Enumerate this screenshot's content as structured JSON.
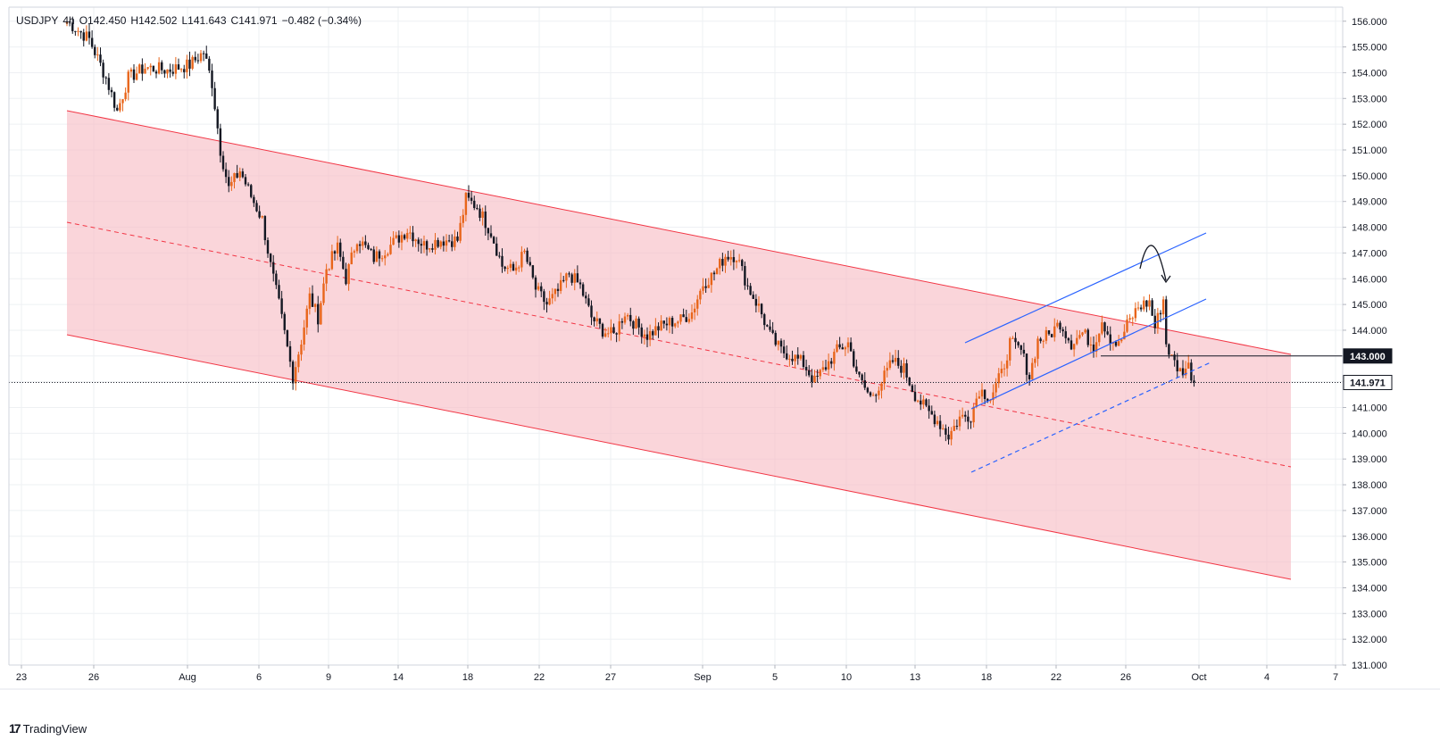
{
  "legend": {
    "symbol": "USDJPY",
    "timeframe": "4h",
    "open": "O142.450",
    "high": "H142.502",
    "low": "L141.643",
    "close": "C141.971",
    "change": "−0.482 (−0.34%)"
  },
  "branding": {
    "name": "TradingView",
    "logo_glyph": "17"
  },
  "colors": {
    "up": "#e8651a",
    "down": "#131722",
    "channel_fill": "#f7bcc4",
    "channel_line": "#f23645",
    "wedge_line": "#2962ff",
    "grid": "#eef0f3"
  },
  "chart_data": {
    "type": "candlestick",
    "symbol": "USDJPY",
    "interval": "4h",
    "y_axis": {
      "min": 131,
      "max": 156,
      "ticks": [
        "131.000",
        "132.000",
        "133.000",
        "134.000",
        "135.000",
        "136.000",
        "137.000",
        "138.000",
        "139.000",
        "140.000",
        "141.000",
        "142.000",
        "143.000",
        "144.000",
        "145.000",
        "146.000",
        "147.000",
        "148.000",
        "149.000",
        "150.000",
        "151.000",
        "152.000",
        "153.000",
        "154.000",
        "155.000",
        "156.000"
      ],
      "position": "right"
    },
    "x_axis": {
      "ticks": [
        "23",
        "26",
        "Aug",
        "6",
        "9",
        "14",
        "18",
        "22",
        "27",
        "Sep",
        "5",
        "10",
        "13",
        "18",
        "22",
        "26",
        "Oct",
        "4",
        "7"
      ]
    },
    "grid": true,
    "price_labels": [
      {
        "value": "143.000",
        "style": "horizontal-line"
      },
      {
        "value": "141.971",
        "style": "last-price"
      }
    ],
    "anchors": [
      {
        "x": 0,
        "p": 156.0
      },
      {
        "x": 8,
        "p": 155.3
      },
      {
        "x": 14,
        "p": 153.8
      },
      {
        "x": 18,
        "p": 152.5
      },
      {
        "x": 22,
        "p": 153.8
      },
      {
        "x": 28,
        "p": 154.2
      },
      {
        "x": 36,
        "p": 154.1
      },
      {
        "x": 44,
        "p": 154.3
      },
      {
        "x": 49,
        "p": 154.8
      },
      {
        "x": 52,
        "p": 153.6
      },
      {
        "x": 55,
        "p": 151.0
      },
      {
        "x": 58,
        "p": 149.5
      },
      {
        "x": 62,
        "p": 150.2
      },
      {
        "x": 66,
        "p": 149.2
      },
      {
        "x": 70,
        "p": 148.3
      },
      {
        "x": 73,
        "p": 146.5
      },
      {
        "x": 76,
        "p": 145.0
      },
      {
        "x": 79,
        "p": 143.3
      },
      {
        "x": 81,
        "p": 142.2
      },
      {
        "x": 84,
        "p": 143.6
      },
      {
        "x": 87,
        "p": 145.3
      },
      {
        "x": 90,
        "p": 144.5
      },
      {
        "x": 93,
        "p": 146.4
      },
      {
        "x": 97,
        "p": 147.2
      },
      {
        "x": 100,
        "p": 146.0
      },
      {
        "x": 104,
        "p": 147.6
      },
      {
        "x": 110,
        "p": 146.8
      },
      {
        "x": 116,
        "p": 147.3
      },
      {
        "x": 122,
        "p": 147.9
      },
      {
        "x": 128,
        "p": 147.3
      },
      {
        "x": 134,
        "p": 147.5
      },
      {
        "x": 140,
        "p": 147.5
      },
      {
        "x": 143,
        "p": 149.1
      },
      {
        "x": 147,
        "p": 148.8
      },
      {
        "x": 152,
        "p": 147.8
      },
      {
        "x": 156,
        "p": 146.5
      },
      {
        "x": 160,
        "p": 146.3
      },
      {
        "x": 164,
        "p": 147.0
      },
      {
        "x": 168,
        "p": 145.6
      },
      {
        "x": 172,
        "p": 145.0
      },
      {
        "x": 176,
        "p": 145.5
      },
      {
        "x": 180,
        "p": 146.2
      },
      {
        "x": 184,
        "p": 145.7
      },
      {
        "x": 188,
        "p": 144.5
      },
      {
        "x": 192,
        "p": 144.0
      },
      {
        "x": 196,
        "p": 143.8
      },
      {
        "x": 200,
        "p": 144.7
      },
      {
        "x": 204,
        "p": 144.2
      },
      {
        "x": 208,
        "p": 143.8
      },
      {
        "x": 212,
        "p": 144.1
      },
      {
        "x": 216,
        "p": 144.3
      },
      {
        "x": 220,
        "p": 144.4
      },
      {
        "x": 224,
        "p": 144.7
      },
      {
        "x": 228,
        "p": 145.8
      },
      {
        "x": 232,
        "p": 146.2
      },
      {
        "x": 236,
        "p": 146.9
      },
      {
        "x": 240,
        "p": 146.9
      },
      {
        "x": 244,
        "p": 145.7
      },
      {
        "x": 248,
        "p": 144.9
      },
      {
        "x": 252,
        "p": 143.8
      },
      {
        "x": 256,
        "p": 143.2
      },
      {
        "x": 260,
        "p": 143.0
      },
      {
        "x": 264,
        "p": 142.7
      },
      {
        "x": 268,
        "p": 142.0
      },
      {
        "x": 272,
        "p": 142.6
      },
      {
        "x": 276,
        "p": 143.2
      },
      {
        "x": 280,
        "p": 143.5
      },
      {
        "x": 284,
        "p": 142.1
      },
      {
        "x": 288,
        "p": 141.4
      },
      {
        "x": 292,
        "p": 142.0
      },
      {
        "x": 296,
        "p": 142.8
      },
      {
        "x": 300,
        "p": 142.5
      },
      {
        "x": 304,
        "p": 141.5
      },
      {
        "x": 308,
        "p": 140.9
      },
      {
        "x": 312,
        "p": 140.5
      },
      {
        "x": 316,
        "p": 139.9
      },
      {
        "x": 320,
        "p": 140.6
      },
      {
        "x": 324,
        "p": 140.7
      },
      {
        "x": 327,
        "p": 141.7
      },
      {
        "x": 331,
        "p": 141.4
      },
      {
        "x": 335,
        "p": 142.3
      },
      {
        "x": 338,
        "p": 143.5
      },
      {
        "x": 342,
        "p": 143.2
      },
      {
        "x": 345,
        "p": 142.2
      },
      {
        "x": 348,
        "p": 143.6
      },
      {
        "x": 352,
        "p": 143.8
      },
      {
        "x": 356,
        "p": 144.3
      },
      {
        "x": 360,
        "p": 143.5
      },
      {
        "x": 364,
        "p": 143.9
      },
      {
        "x": 368,
        "p": 143.4
      },
      {
        "x": 371,
        "p": 144.4
      },
      {
        "x": 374,
        "p": 143.7
      },
      {
        "x": 377,
        "p": 143.4
      },
      {
        "x": 380,
        "p": 144.2
      },
      {
        "x": 384,
        "p": 144.9
      },
      {
        "x": 388,
        "p": 145.1
      },
      {
        "x": 390,
        "p": 144.1
      },
      {
        "x": 393,
        "p": 145.2
      },
      {
        "x": 394,
        "p": 143.5
      },
      {
        "x": 396,
        "p": 142.9
      },
      {
        "x": 399,
        "p": 142.4
      },
      {
        "x": 402,
        "p": 142.6
      },
      {
        "x": 404,
        "p": 141.97
      }
    ],
    "annotations": [
      "descending regression channel (upper, mid, lower)",
      "ascending wedge/channel",
      "curved arrow at top of rally"
    ]
  }
}
